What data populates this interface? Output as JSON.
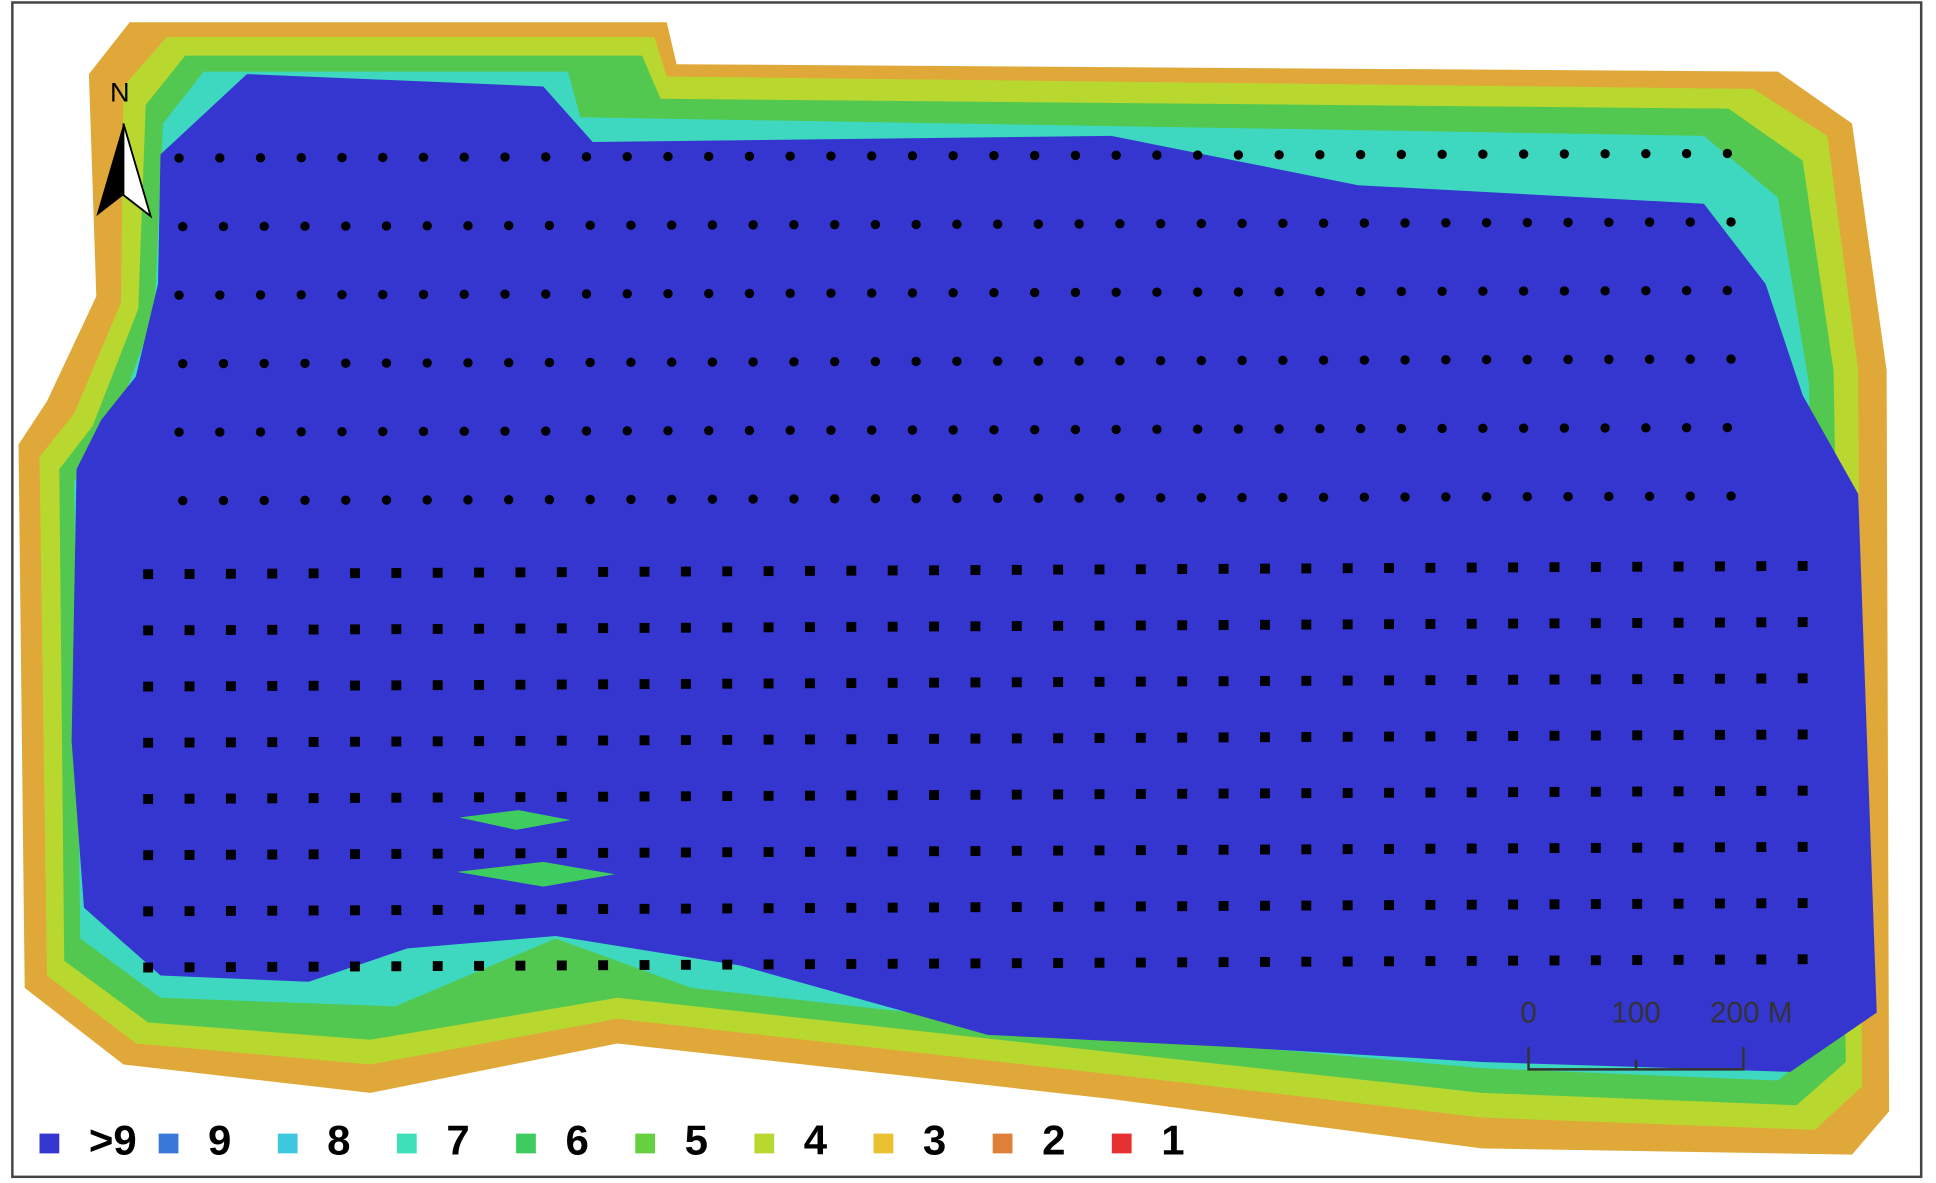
{
  "legend": {
    "items": [
      {
        "label": ">9",
        "color": "#3535d0"
      },
      {
        "label": "9",
        "color": "#3a78d8"
      },
      {
        "label": "8",
        "color": "#3ec8e0"
      },
      {
        "label": "7",
        "color": "#3ee0b8"
      },
      {
        "label": "6",
        "color": "#3ecc60"
      },
      {
        "label": "5",
        "color": "#66d040"
      },
      {
        "label": "4",
        "color": "#b8d830"
      },
      {
        "label": "3",
        "color": "#e8c030"
      },
      {
        "label": "2",
        "color": "#e08038"
      },
      {
        "label": "1",
        "color": "#e83030"
      }
    ]
  },
  "north_arrow": {
    "label": "N"
  },
  "scale_bar": {
    "labels": [
      "0",
      "100",
      "200 M"
    ]
  }
}
